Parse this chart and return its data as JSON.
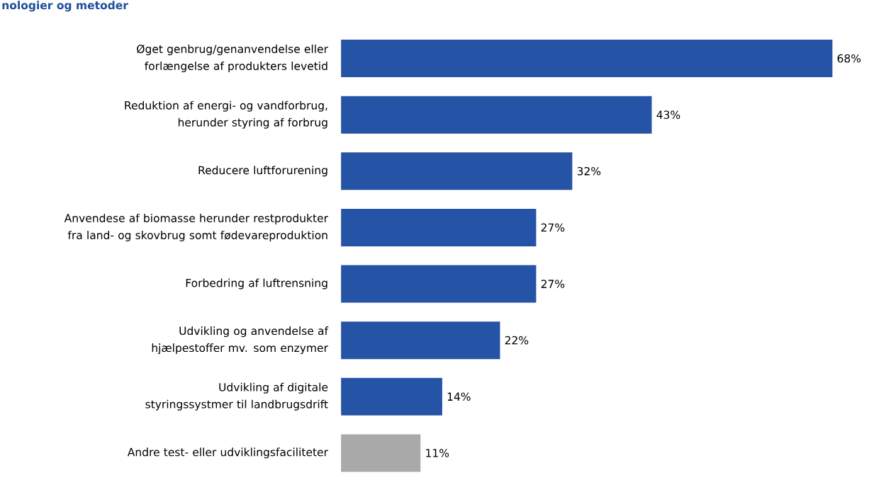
{
  "chart_data": {
    "type": "bar",
    "orientation": "horizontal",
    "title": "nologier og metoder",
    "categories": [
      "Øget genbrug/genanvendelse eller forlængelse af produkters levetid",
      "Reduktion af energi- og vandforbrug, herunder styring af forbrug",
      "Reducere luftforurening",
      "Anvendese af biomasse herunder restprodukter fra land- og skovbrug somt fødevareproduktion",
      "Forbedring af luftrensning",
      "Udvikling og anvendelse af hjælpestoffer mv. som enzymer",
      "Udvikling af digitale styringssystmer til landbrugsdrift",
      "Andre test- eller udviklingsfaciliteter"
    ],
    "values": [
      68,
      43,
      32,
      27,
      27,
      22,
      14,
      11
    ],
    "colors": [
      "#2553a5",
      "#2553a5",
      "#2553a5",
      "#2553a5",
      "#2553a5",
      "#2553a5",
      "#2553a5",
      "#a9a9a9"
    ],
    "value_labels": [
      "68%",
      "43%",
      "32%",
      "27%",
      "27%",
      "22%",
      "14%",
      "11%"
    ]
  }
}
